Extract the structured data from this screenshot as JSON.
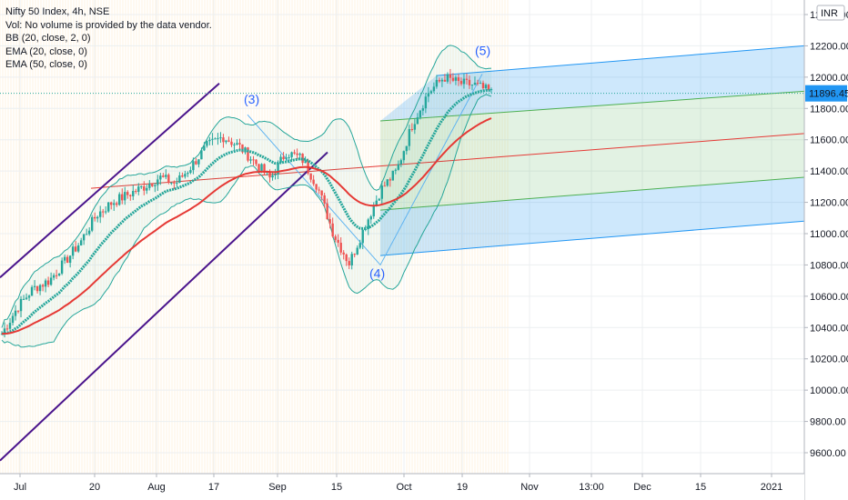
{
  "legend": {
    "title": "Nifty 50 Index, 4h, NSE",
    "volume_note": "Vol: No volume is provided by the data vendor.",
    "bb": "BB (20, close, 2, 0)",
    "ema20": "EMA (20, close, 0)",
    "ema50": "EMA (50, close, 0)"
  },
  "currency": "INR",
  "colors": {
    "up": "#26a69a",
    "down": "#ef5350",
    "ema20": "#26a69a",
    "ema50": "#e53935",
    "bb_line": "#26a69a",
    "channel_line": "#4a148c",
    "fib_blue": "#2196f3",
    "fib_green": "#4caf50",
    "fib_red": "#e53935",
    "price_label_bg": "#2196f3",
    "wave_label": "#2962ff"
  },
  "chart_data": {
    "type": "candlestick",
    "symbol": "Nifty 50 Index",
    "interval": "4h",
    "exchange": "NSE",
    "last_price": "11896.45",
    "y_ticks": [
      "12400.00",
      "12200.00",
      "12000.00",
      "11800.00",
      "11600.00",
      "11400.00",
      "11200.00",
      "11000.00",
      "10800.00",
      "10600.00",
      "10400.00",
      "10200.00",
      "10000.00",
      "9800.00",
      "9600.00"
    ],
    "x_ticks": [
      "Jul",
      "20",
      "Aug",
      "17",
      "Sep",
      "15",
      "Oct",
      "19",
      "Nov",
      "13:00",
      "Dec",
      "15",
      "2021"
    ],
    "ylim": [
      9450,
      12480
    ],
    "wave_labels": [
      {
        "label": "(3)",
        "price": 11760
      },
      {
        "label": "(4)",
        "price": 10800
      },
      {
        "label": "(5)",
        "price": 12060
      }
    ],
    "ohlc_anchor_closes": [
      10360,
      10530,
      10650,
      10700,
      10820,
      10950,
      11120,
      11200,
      11250,
      11300,
      11360,
      11320,
      11430,
      11560,
      11620,
      11560,
      11460,
      11350,
      11520,
      11480,
      11300,
      11000,
      10810,
      11050,
      11280,
      11400,
      11700,
      11900,
      12000,
      11960,
      11950,
      11900
    ]
  }
}
